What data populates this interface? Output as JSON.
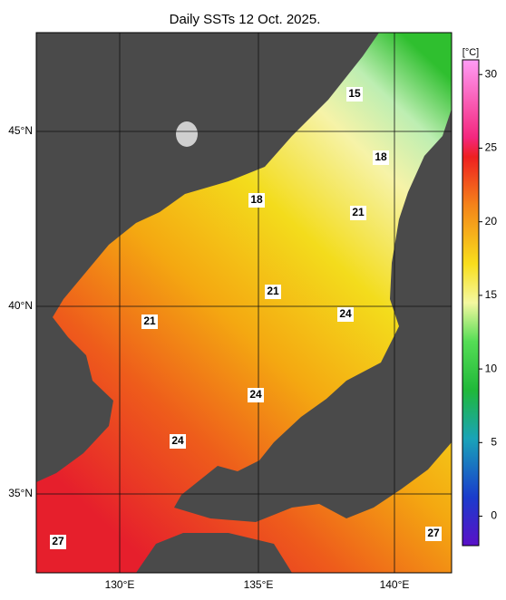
{
  "title": "Daily SSTs 12 Oct. 2025.",
  "x_labels": [
    "130°E",
    "135°E",
    "140°E"
  ],
  "y_labels": [
    "45°N",
    "40°N",
    "35°N"
  ],
  "colorbar": {
    "unit": "[°C]",
    "lim": [
      -2,
      31
    ],
    "ticks": [
      0,
      5,
      10,
      15,
      20,
      25,
      30
    ]
  },
  "contour_labels": [
    "15",
    "18",
    "18",
    "21",
    "21",
    "21",
    "24",
    "24",
    "24",
    "27",
    "27"
  ]
}
